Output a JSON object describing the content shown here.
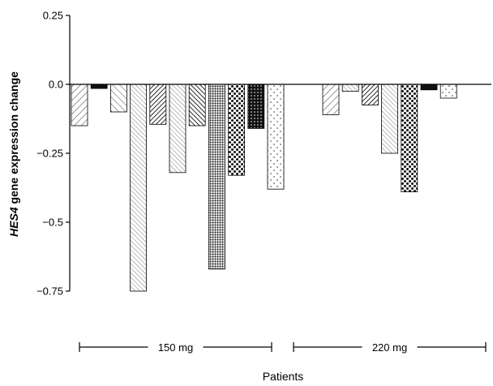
{
  "chart_data": {
    "type": "bar",
    "ylabel_italic": "HES4",
    "ylabel_rest": " gene expression change",
    "xlabel": "Patients",
    "ylim": [
      -0.75,
      0.25
    ],
    "yticks": [
      {
        "value": 0.25,
        "label": "0.25"
      },
      {
        "value": 0.0,
        "label": "0.0"
      },
      {
        "value": -0.25,
        "label": "−0.25"
      },
      {
        "value": -0.5,
        "label": "−0.5"
      },
      {
        "value": -0.75,
        "label": "−0.75"
      }
    ],
    "groups": [
      {
        "label": "150 mg",
        "bars": [
          {
            "value": -0.15,
            "pattern": "hatch-fwd"
          },
          {
            "value": -0.015,
            "pattern": "solid-dark"
          },
          {
            "value": -0.1,
            "pattern": "hatch-back"
          },
          {
            "value": -0.75,
            "pattern": "hatch-fine-back"
          },
          {
            "value": -0.145,
            "pattern": "hatch-dense-fwd"
          },
          {
            "value": -0.32,
            "pattern": "hatch-fine-back"
          },
          {
            "value": -0.15,
            "pattern": "hatch-dense-back"
          },
          {
            "value": -0.67,
            "pattern": "dots-dense"
          },
          {
            "value": -0.33,
            "pattern": "dots-big"
          },
          {
            "value": -0.16,
            "pattern": "dots-dark"
          },
          {
            "value": -0.38,
            "pattern": "dots-sparse"
          }
        ]
      },
      {
        "label": "220 mg",
        "bars": [
          {
            "value": -0.11,
            "pattern": "hatch-fwd"
          },
          {
            "value": -0.025,
            "pattern": "hatch-fine-back"
          },
          {
            "value": -0.075,
            "pattern": "hatch-dense-fwd"
          },
          {
            "value": -0.25,
            "pattern": "hatch-fine-back"
          },
          {
            "value": -0.39,
            "pattern": "dots-big"
          },
          {
            "value": -0.02,
            "pattern": "solid-dark"
          },
          {
            "value": -0.05,
            "pattern": "dots-sparse"
          }
        ]
      }
    ]
  }
}
